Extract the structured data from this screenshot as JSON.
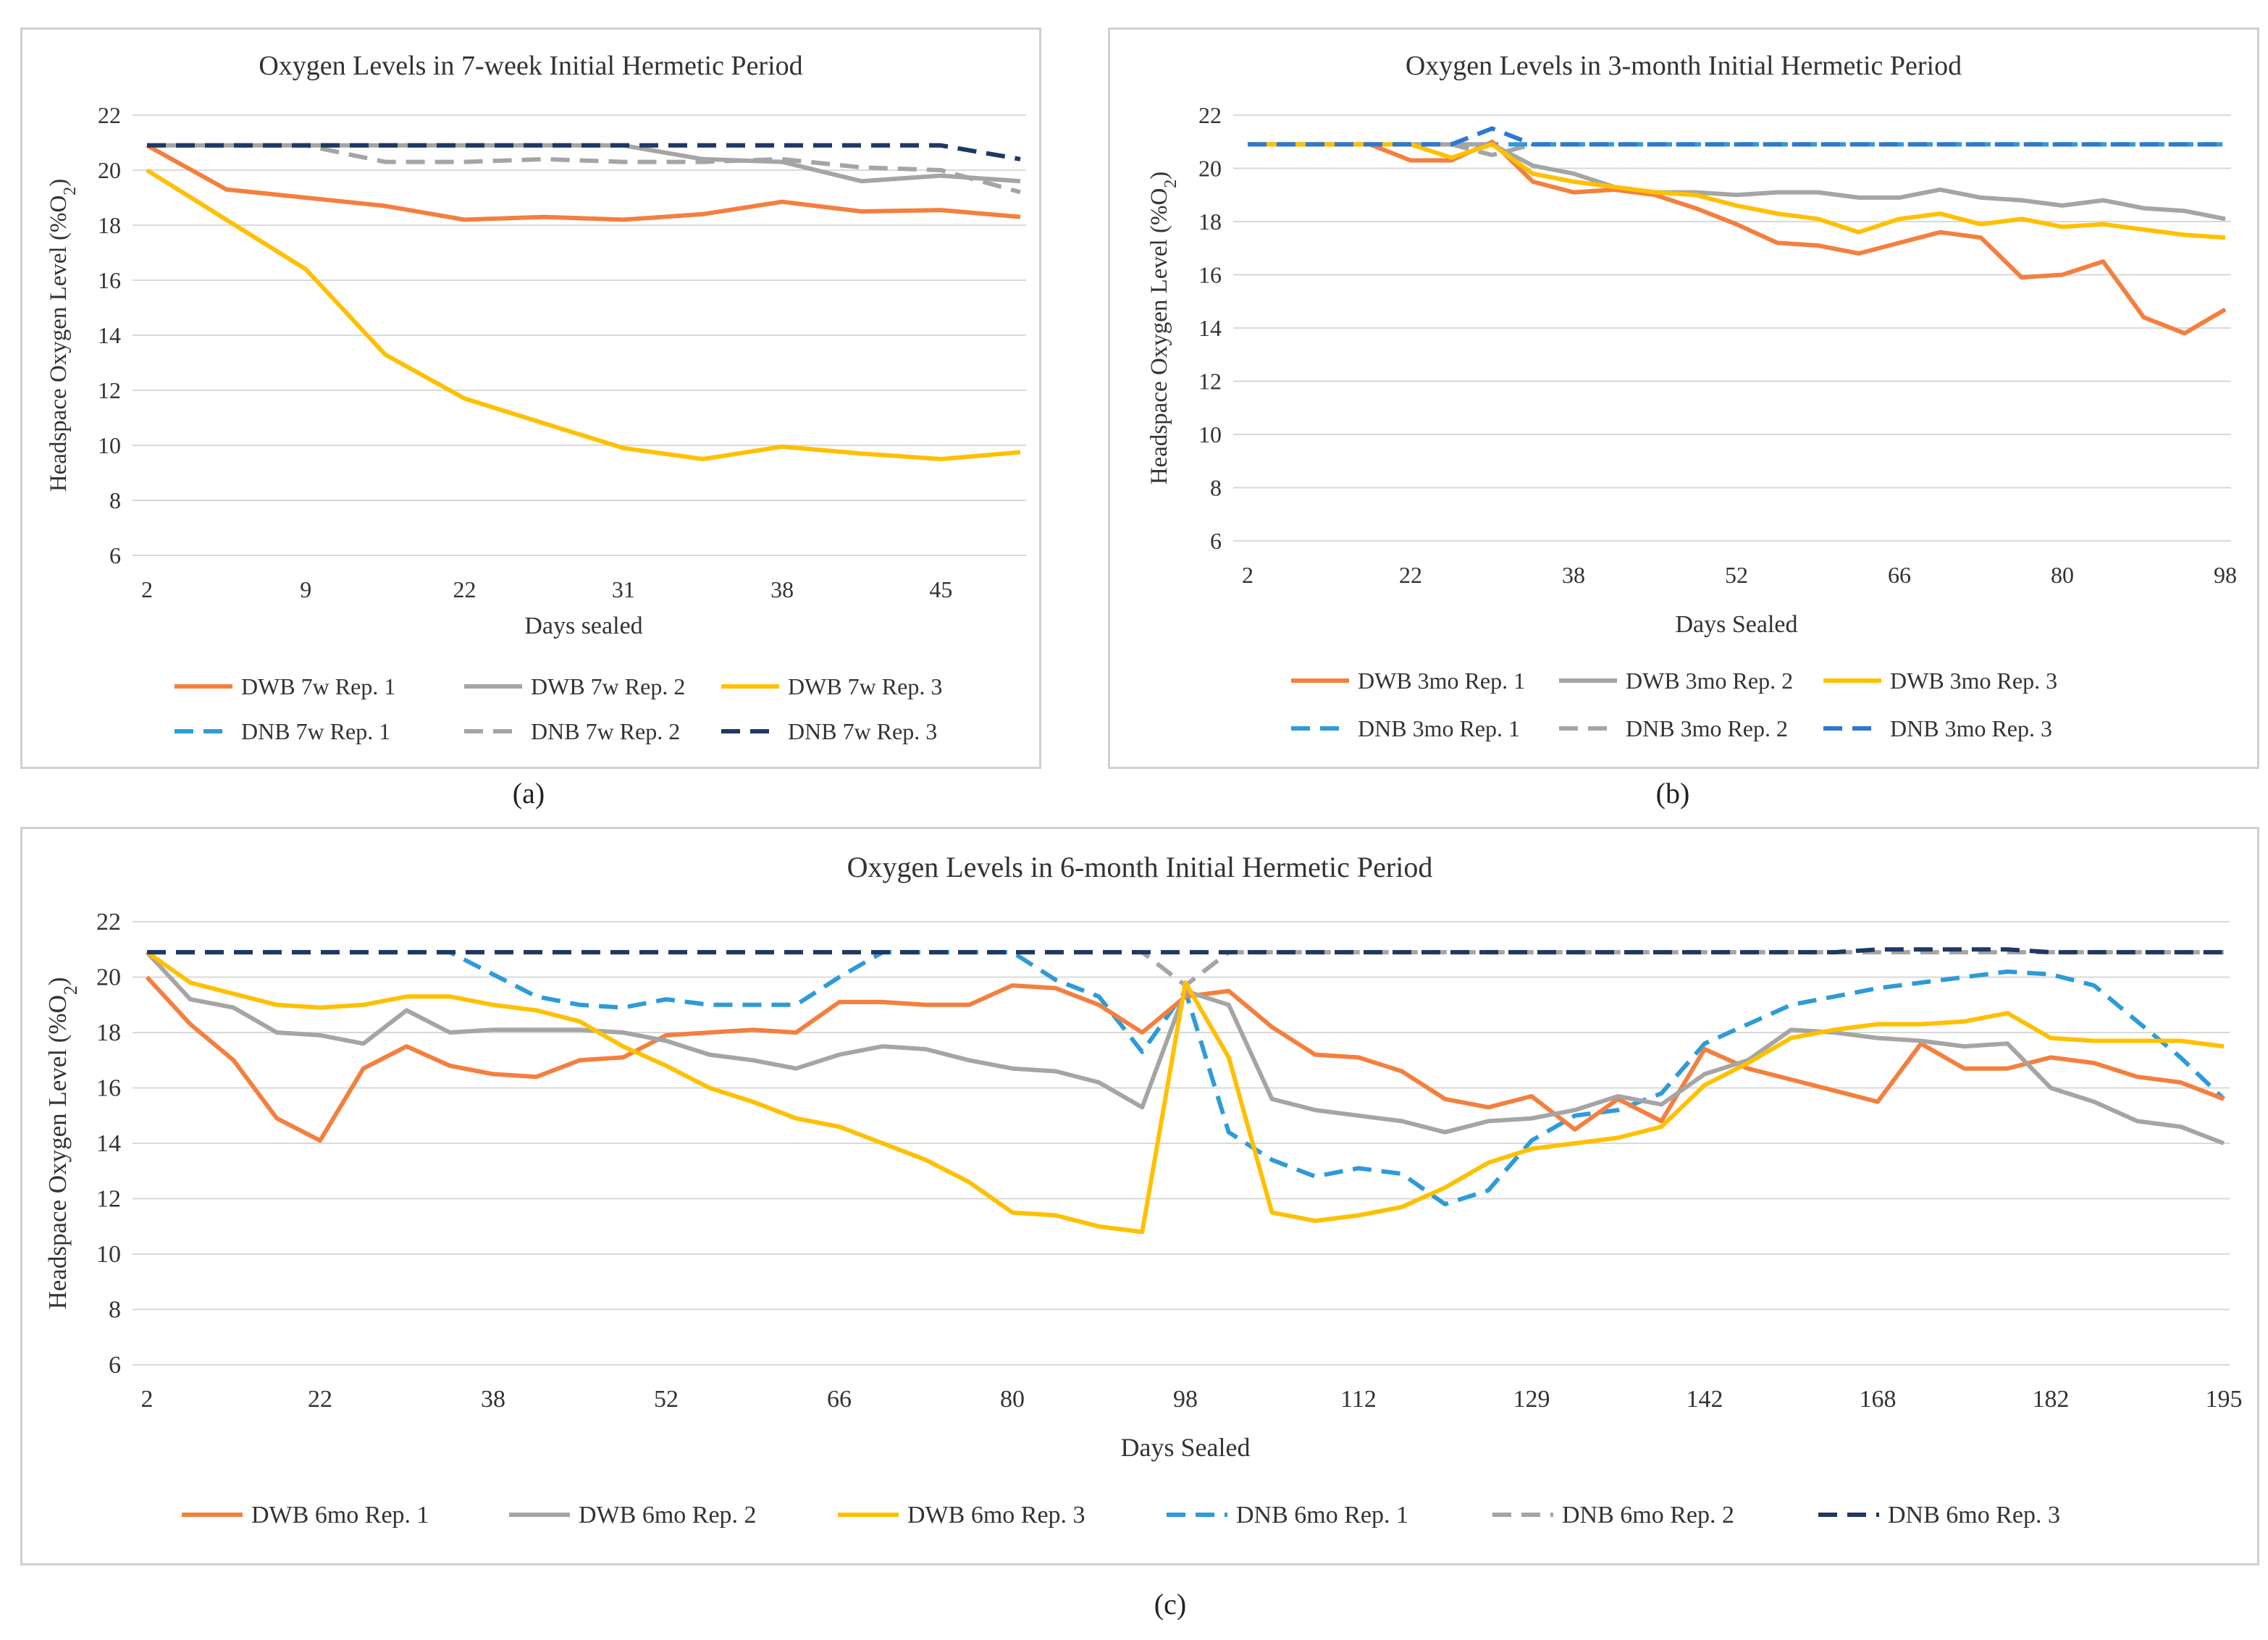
{
  "colors": {
    "orange": "#F47F3E",
    "gray": "#A5A5A5",
    "yellow": "#FFC000",
    "light_blue": "#2E9BD8",
    "dark_navy": "#1F3864",
    "blue_mid": "#2F78D1",
    "grid": "#d9d9d9"
  },
  "chart_data": [
    {
      "id": "a",
      "panel_label": "(a)",
      "type": "line",
      "title": "Oxygen Levels in 7-week Initial Hermetic Period",
      "xlabel": "Days sealed",
      "ylabel": "Headspace Oxygen Level (%O",
      "ylabel_sub": "2",
      "ylabel_close": ")",
      "ylim": [
        6,
        22
      ],
      "yticks": [
        6,
        8,
        10,
        12,
        14,
        16,
        18,
        20,
        22
      ],
      "xticks": [
        "2",
        "9",
        "22",
        "31",
        "38",
        "45"
      ],
      "xtick_positions": [
        0,
        2,
        4,
        6,
        8,
        10
      ],
      "n_points": 12,
      "series": [
        {
          "name": "DWB 7w Rep. 1",
          "color": "#F47F3E",
          "dash": false,
          "values": [
            20.9,
            19.3,
            19.0,
            18.7,
            18.2,
            18.3,
            18.2,
            18.4,
            18.85,
            18.5,
            18.55,
            18.3
          ]
        },
        {
          "name": "DWB 7w Rep. 2",
          "color": "#A5A5A5",
          "dash": false,
          "values": [
            20.9,
            20.9,
            20.9,
            20.9,
            20.9,
            20.9,
            20.9,
            20.4,
            20.3,
            19.6,
            19.8,
            19.6
          ]
        },
        {
          "name": "DWB 7w Rep. 3",
          "color": "#FFC000",
          "dash": false,
          "values": [
            20.0,
            18.2,
            16.4,
            13.3,
            11.7,
            10.8,
            9.9,
            9.5,
            9.95,
            9.7,
            9.5,
            9.75
          ]
        },
        {
          "name": "DNB 7w Rep. 1",
          "color": "#2E9BD8",
          "dash": true,
          "values": [
            20.9,
            20.9,
            20.9,
            20.9,
            20.9,
            20.9,
            20.9,
            20.9,
            20.9,
            20.9,
            20.9,
            20.4
          ]
        },
        {
          "name": "DNB 7w Rep. 2",
          "color": "#A5A5A5",
          "dash": true,
          "values": [
            20.9,
            20.9,
            20.9,
            20.3,
            20.3,
            20.4,
            20.3,
            20.3,
            20.4,
            20.1,
            20.0,
            19.2
          ]
        },
        {
          "name": "DNB 7w Rep. 3",
          "color": "#1F3864",
          "dash": true,
          "values": [
            20.9,
            20.9,
            20.9,
            20.9,
            20.9,
            20.9,
            20.9,
            20.9,
            20.9,
            20.9,
            20.9,
            20.4
          ]
        }
      ]
    },
    {
      "id": "b",
      "panel_label": "(b)",
      "type": "line",
      "title": "Oxygen Levels in 3-month Initial Hermetic Period",
      "xlabel": "Days Sealed",
      "ylabel": "Headspace Oxygen Level (%O",
      "ylabel_sub": "2",
      "ylabel_close": ")",
      "ylim": [
        6,
        22
      ],
      "yticks": [
        6,
        8,
        10,
        12,
        14,
        16,
        18,
        20,
        22
      ],
      "xticks": [
        "2",
        "22",
        "38",
        "52",
        "66",
        "80",
        "98"
      ],
      "xtick_positions": [
        0,
        4,
        8,
        12,
        16,
        20,
        24
      ],
      "n_points": 25,
      "series": [
        {
          "name": "DWB 3mo Rep. 1",
          "color": "#F47F3E",
          "dash": false,
          "values": [
            20.9,
            20.9,
            20.9,
            20.9,
            20.3,
            20.3,
            21.0,
            19.5,
            19.1,
            19.2,
            19.0,
            18.5,
            17.9,
            17.2,
            17.1,
            16.8,
            17.2,
            17.6,
            17.4,
            15.9,
            16.0,
            16.5,
            14.4,
            13.8,
            14.7
          ]
        },
        {
          "name": "DWB 3mo Rep. 2",
          "color": "#A5A5A5",
          "dash": false,
          "values": [
            20.9,
            20.9,
            20.9,
            20.9,
            20.9,
            20.9,
            20.9,
            20.1,
            19.8,
            19.3,
            19.1,
            19.1,
            19.0,
            19.1,
            19.1,
            18.9,
            18.9,
            19.2,
            18.9,
            18.8,
            18.6,
            18.8,
            18.5,
            18.4,
            18.1
          ]
        },
        {
          "name": "DWB 3mo Rep. 3",
          "color": "#FFC000",
          "dash": false,
          "values": [
            20.9,
            20.9,
            20.9,
            20.9,
            20.9,
            20.4,
            20.9,
            19.8,
            19.5,
            19.3,
            19.1,
            19.0,
            18.6,
            18.3,
            18.1,
            17.6,
            18.1,
            18.3,
            17.9,
            18.1,
            17.8,
            17.9,
            17.7,
            17.5,
            17.4
          ]
        },
        {
          "name": "DNB 3mo Rep. 1",
          "color": "#2E9BD8",
          "dash": true,
          "values": [
            20.9,
            20.9,
            20.9,
            20.9,
            20.9,
            20.9,
            20.9,
            20.9,
            20.9,
            20.9,
            20.9,
            20.9,
            20.9,
            20.9,
            20.9,
            20.9,
            20.9,
            20.9,
            20.9,
            20.9,
            20.9,
            20.9,
            20.9,
            20.9,
            20.9
          ]
        },
        {
          "name": "DNB 3mo Rep. 2",
          "color": "#A5A5A5",
          "dash": true,
          "values": [
            20.9,
            20.9,
            20.9,
            20.9,
            20.9,
            20.9,
            20.5,
            20.9,
            20.9,
            20.9,
            20.9,
            20.9,
            20.9,
            20.9,
            20.9,
            20.9,
            20.9,
            20.9,
            20.9,
            20.9,
            20.9,
            20.9,
            20.9,
            20.9,
            20.9
          ]
        },
        {
          "name": "DNB 3mo Rep. 3",
          "color": "#2F78D1",
          "dash": true,
          "values": [
            20.9,
            20.9,
            20.9,
            20.9,
            20.9,
            20.9,
            21.5,
            20.9,
            20.9,
            20.9,
            20.9,
            20.9,
            20.9,
            20.9,
            20.9,
            20.9,
            20.9,
            20.9,
            20.9,
            20.9,
            20.9,
            20.9,
            20.9,
            20.9,
            20.9
          ]
        }
      ]
    },
    {
      "id": "c",
      "panel_label": "(c)",
      "type": "line",
      "title": "Oxygen Levels in 6-month Initial Hermetic Period",
      "xlabel": "Days Sealed",
      "ylabel": "Headspace Oxygen Level (%O",
      "ylabel_sub": "2",
      "ylabel_close": ")",
      "ylim": [
        6,
        22
      ],
      "yticks": [
        6,
        8,
        10,
        12,
        14,
        16,
        18,
        20,
        22
      ],
      "xticks": [
        "2",
        "22",
        "38",
        "52",
        "66",
        "80",
        "98",
        "112",
        "129",
        "142",
        "168",
        "182",
        "195"
      ],
      "xtick_positions": [
        0,
        4,
        8,
        12,
        16,
        20,
        24,
        28,
        32,
        36,
        40,
        44,
        48
      ],
      "n_points": 49,
      "series": [
        {
          "name": "DWB 6mo Rep. 1",
          "color": "#F47F3E",
          "dash": false,
          "values": [
            20.0,
            18.3,
            17.0,
            14.9,
            14.1,
            16.7,
            17.5,
            16.8,
            16.5,
            16.4,
            17.0,
            17.1,
            17.9,
            18.0,
            18.1,
            18.0,
            19.1,
            19.1,
            19.0,
            19.0,
            19.7,
            19.6,
            19.0,
            18.0,
            19.3,
            19.5,
            18.2,
            17.2,
            17.1,
            16.6,
            15.6,
            15.3,
            15.7,
            14.5,
            15.6,
            14.8,
            17.4,
            16.7,
            16.3,
            15.9,
            15.5,
            17.6,
            16.7,
            16.7,
            17.1,
            16.9,
            16.4,
            16.2,
            15.6
          ]
        },
        {
          "name": "DWB 6mo Rep. 2",
          "color": "#A5A5A5",
          "dash": false,
          "values": [
            20.9,
            19.2,
            18.9,
            18.0,
            17.9,
            17.6,
            18.8,
            18.0,
            18.1,
            18.1,
            18.1,
            18.0,
            17.7,
            17.2,
            17.0,
            16.7,
            17.2,
            17.5,
            17.4,
            17.0,
            16.7,
            16.6,
            16.2,
            15.3,
            19.5,
            19.0,
            15.6,
            15.2,
            15.0,
            14.8,
            14.4,
            14.8,
            14.9,
            15.2,
            15.7,
            15.4,
            16.5,
            17.0,
            18.1,
            18.0,
            17.8,
            17.7,
            17.5,
            17.6,
            16.0,
            15.5,
            14.8,
            14.6,
            14.0
          ]
        },
        {
          "name": "DWB 6mo Rep. 3",
          "color": "#FFC000",
          "dash": false,
          "values": [
            20.9,
            19.8,
            19.4,
            19.0,
            18.9,
            19.0,
            19.3,
            19.3,
            19.0,
            18.8,
            18.4,
            17.5,
            16.8,
            16.0,
            15.5,
            14.9,
            14.6,
            14.0,
            13.4,
            12.6,
            11.5,
            11.4,
            11.0,
            10.8,
            19.8,
            17.1,
            11.5,
            11.2,
            11.4,
            11.7,
            12.4,
            13.3,
            13.8,
            14.0,
            14.2,
            14.6,
            16.1,
            16.9,
            17.8,
            18.1,
            18.3,
            18.3,
            18.4,
            18.7,
            17.8,
            17.7,
            17.7,
            17.7,
            17.5
          ]
        },
        {
          "name": "DNB 6mo Rep. 1",
          "color": "#2E9BD8",
          "dash": true,
          "values": [
            20.9,
            20.9,
            20.9,
            20.9,
            20.9,
            20.9,
            20.9,
            20.9,
            20.1,
            19.3,
            19.0,
            18.9,
            19.2,
            19.0,
            19.0,
            19.0,
            20.0,
            20.9,
            20.9,
            20.9,
            20.9,
            19.9,
            19.3,
            17.3,
            19.5,
            14.4,
            13.4,
            12.8,
            13.1,
            12.9,
            11.8,
            12.3,
            14.1,
            15.0,
            15.2,
            15.8,
            17.6,
            18.3,
            19.0,
            19.3,
            19.6,
            19.8,
            20.0,
            20.2,
            20.1,
            19.7,
            18.4,
            17.1,
            15.6
          ]
        },
        {
          "name": "DNB 6mo Rep. 2",
          "color": "#A5A5A5",
          "dash": true,
          "values": [
            20.9,
            20.9,
            20.9,
            20.9,
            20.9,
            20.9,
            20.9,
            20.9,
            20.9,
            20.9,
            20.9,
            20.9,
            20.9,
            20.9,
            20.9,
            20.9,
            20.9,
            20.9,
            20.9,
            20.9,
            20.9,
            20.9,
            20.9,
            20.9,
            19.7,
            20.9,
            20.9,
            20.9,
            20.9,
            20.9,
            20.9,
            20.9,
            20.9,
            20.9,
            20.9,
            20.9,
            20.9,
            20.9,
            20.9,
            20.9,
            20.9,
            20.9,
            20.9,
            20.9,
            20.9,
            20.9,
            20.9,
            20.9,
            20.9
          ]
        },
        {
          "name": "DNB 6mo Rep. 3",
          "color": "#1F3864",
          "dash": true,
          "values": [
            20.9,
            20.9,
            20.9,
            20.9,
            20.9,
            20.9,
            20.9,
            20.9,
            20.9,
            20.9,
            20.9,
            20.9,
            20.9,
            20.9,
            20.9,
            20.9,
            20.9,
            20.9,
            20.9,
            20.9,
            20.9,
            20.9,
            20.9,
            20.9,
            20.9,
            20.9,
            20.9,
            20.9,
            20.9,
            20.9,
            20.9,
            20.9,
            20.9,
            20.9,
            20.9,
            20.9,
            20.9,
            20.9,
            20.9,
            20.9,
            21.0,
            21.0,
            21.0,
            21.0,
            20.9,
            20.9,
            20.9,
            20.9,
            20.9
          ]
        }
      ]
    }
  ]
}
